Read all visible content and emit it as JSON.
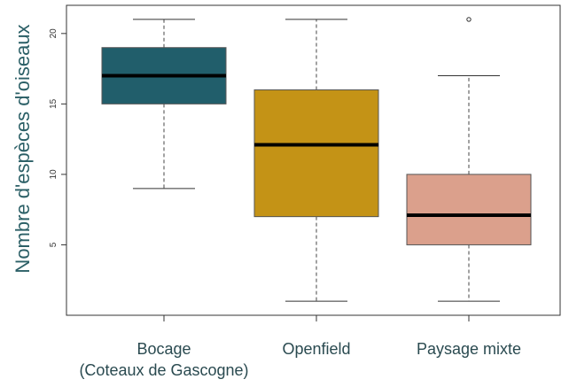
{
  "chart_data": {
    "type": "boxplot",
    "ylabel": "Nombre d'espèces d'oiseaux",
    "ylim": [
      0,
      22
    ],
    "yticks": [
      5,
      10,
      15,
      20
    ],
    "grid": false,
    "series": [
      {
        "category_lines": [
          "Bocage",
          "(Coteaux de Gascogne)"
        ],
        "min": 9,
        "q1": 15,
        "median": 17,
        "q3": 19,
        "max": 21,
        "outliers": [],
        "color": "#215e6b"
      },
      {
        "category_lines": [
          "Openfield"
        ],
        "min": 1,
        "q1": 7,
        "median": 12.1,
        "q3": 16,
        "max": 21,
        "outliers": [],
        "color": "#c49316"
      },
      {
        "category_lines": [
          "Paysage mixte"
        ],
        "min": 1,
        "q1": 5,
        "median": 7.1,
        "q3": 10,
        "max": 17,
        "outliers": [
          21
        ],
        "color": "#dba08c"
      }
    ]
  }
}
